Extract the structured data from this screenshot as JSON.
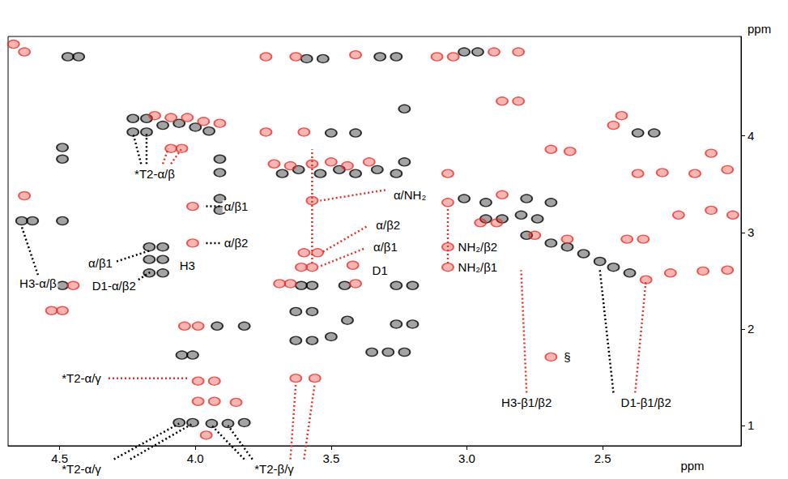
{
  "chart_data": {
    "type": "scatter",
    "marker": "ellipse",
    "xlabel": "ppm",
    "ylabel": "ppm",
    "xlim": [
      4.69,
      1.99
    ],
    "xticks": [
      4.5,
      {
        "value": 4,
        "label": "4.0"
      },
      3.5,
      {
        "value": 3,
        "label": "3.0"
      },
      2.5
    ],
    "ylim": [
      5.03,
      0.79
    ],
    "yticks": [
      1,
      2,
      3,
      4
    ],
    "grid": false,
    "series": [
      {
        "color": "#000000",
        "values": [
          [
            4.06,
            1.03
          ],
          [
            4.01,
            1.03
          ],
          [
            3.94,
            1.02
          ],
          [
            3.88,
            1.02
          ],
          [
            3.82,
            1.03
          ],
          [
            4.05,
            1.73
          ],
          [
            4.01,
            1.73
          ],
          [
            3.92,
            2.03
          ],
          [
            3.82,
            2.03
          ],
          [
            4.49,
            2.45
          ],
          [
            4.64,
            3.12
          ],
          [
            4.6,
            3.12
          ],
          [
            4.49,
            3.12
          ],
          [
            4.17,
            2.58
          ],
          [
            4.12,
            2.58
          ],
          [
            4.17,
            2.72
          ],
          [
            4.12,
            2.72
          ],
          [
            4.17,
            2.85
          ],
          [
            4.12,
            2.85
          ],
          [
            3.91,
            3.23
          ],
          [
            3.91,
            3.35
          ],
          [
            4.49,
            3.76
          ],
          [
            4.49,
            3.88
          ],
          [
            3.91,
            3.62
          ],
          [
            3.91,
            3.76
          ],
          [
            4.23,
            4.04
          ],
          [
            4.23,
            4.18
          ],
          [
            4.18,
            4.04
          ],
          [
            4.18,
            4.18
          ],
          [
            4.12,
            4.11
          ],
          [
            4.06,
            4.13
          ],
          [
            4.0,
            4.09
          ],
          [
            3.95,
            4.05
          ],
          [
            4.47,
            4.82
          ],
          [
            4.43,
            4.82
          ],
          [
            3.63,
            1.88
          ],
          [
            3.57,
            1.88
          ],
          [
            3.5,
            1.92
          ],
          [
            3.63,
            2.18
          ],
          [
            3.57,
            2.18
          ],
          [
            3.44,
            2.09
          ],
          [
            3.35,
            1.76
          ],
          [
            3.29,
            1.76
          ],
          [
            3.23,
            1.76
          ],
          [
            3.26,
            2.05
          ],
          [
            3.2,
            2.05
          ],
          [
            3.61,
            2.45
          ],
          [
            3.57,
            2.45
          ],
          [
            3.45,
            2.45
          ],
          [
            3.26,
            2.45
          ],
          [
            3.2,
            2.45
          ],
          [
            3.68,
            3.61
          ],
          [
            3.62,
            3.65
          ],
          [
            3.54,
            3.61
          ],
          [
            3.47,
            3.65
          ],
          [
            3.41,
            3.61
          ],
          [
            3.33,
            3.65
          ],
          [
            3.26,
            3.61
          ],
          [
            3.23,
            3.73
          ],
          [
            3.5,
            4.03
          ],
          [
            3.41,
            4.03
          ],
          [
            3.23,
            4.28
          ],
          [
            3.59,
            4.8
          ],
          [
            3.53,
            4.8
          ],
          [
            3.32,
            4.82
          ],
          [
            3.26,
            4.82
          ],
          [
            2.93,
            3.14
          ],
          [
            2.87,
            3.14
          ],
          [
            2.8,
            3.18
          ],
          [
            2.74,
            3.14
          ],
          [
            2.93,
            3.31
          ],
          [
            2.78,
            3.35
          ],
          [
            2.69,
            3.31
          ],
          [
            2.78,
            2.97
          ],
          [
            2.69,
            2.89
          ],
          [
            2.63,
            2.85
          ],
          [
            2.57,
            2.78
          ],
          [
            2.51,
            2.7
          ],
          [
            2.46,
            2.64
          ],
          [
            2.4,
            2.58
          ],
          [
            3.01,
            3.35
          ],
          [
            2.37,
            4.03
          ],
          [
            2.31,
            4.03
          ],
          [
            3.01,
            4.87
          ],
          [
            2.96,
            4.87
          ]
        ]
      },
      {
        "color": "#e8322b",
        "values": [
          [
            3.96,
            0.9
          ],
          [
            3.99,
            1.25
          ],
          [
            3.93,
            1.25
          ],
          [
            3.85,
            1.24
          ],
          [
            3.99,
            1.46
          ],
          [
            3.93,
            1.46
          ],
          [
            3.63,
            1.49
          ],
          [
            3.56,
            1.49
          ],
          [
            4.04,
            2.03
          ],
          [
            3.99,
            2.03
          ],
          [
            4.53,
            2.19
          ],
          [
            4.49,
            2.19
          ],
          [
            4.45,
            2.45
          ],
          [
            4.63,
            3.38
          ],
          [
            4.01,
            2.89
          ],
          [
            4.01,
            3.27
          ],
          [
            4.09,
            3.87
          ],
          [
            4.05,
            3.87
          ],
          [
            4.15,
            4.21
          ],
          [
            4.09,
            4.19
          ],
          [
            4.03,
            4.19
          ],
          [
            3.97,
            4.15
          ],
          [
            3.91,
            4.13
          ],
          [
            4.63,
            4.87
          ],
          [
            4.67,
            4.95
          ],
          [
            3.69,
            2.47
          ],
          [
            3.65,
            2.47
          ],
          [
            3.61,
            2.64
          ],
          [
            3.57,
            2.64
          ],
          [
            3.6,
            2.79
          ],
          [
            3.55,
            2.79
          ],
          [
            3.42,
            2.66
          ],
          [
            3.41,
            2.47
          ],
          [
            3.57,
            3.33
          ],
          [
            3.71,
            3.71
          ],
          [
            3.65,
            3.69
          ],
          [
            3.57,
            3.71
          ],
          [
            3.5,
            3.73
          ],
          [
            3.44,
            3.69
          ],
          [
            3.36,
            3.73
          ],
          [
            3.74,
            4.04
          ],
          [
            3.6,
            4.04
          ],
          [
            3.74,
            4.82
          ],
          [
            3.63,
            4.82
          ],
          [
            3.41,
            4.84
          ],
          [
            3.07,
            2.64
          ],
          [
            3.07,
            2.85
          ],
          [
            3.07,
            3.31
          ],
          [
            3.07,
            3.61
          ],
          [
            2.95,
            3.1
          ],
          [
            2.89,
            3.1
          ],
          [
            2.87,
            3.39
          ],
          [
            2.75,
            2.97
          ],
          [
            2.63,
            2.93
          ],
          [
            2.69,
            3.86
          ],
          [
            2.62,
            3.84
          ],
          [
            2.87,
            4.36
          ],
          [
            2.81,
            4.36
          ],
          [
            3.11,
            4.82
          ],
          [
            3.05,
            4.82
          ],
          [
            2.9,
            4.87
          ],
          [
            2.81,
            4.87
          ],
          [
            2.69,
            1.71
          ],
          [
            2.34,
            2.51
          ],
          [
            2.25,
            2.58
          ],
          [
            2.13,
            2.6
          ],
          [
            2.04,
            2.61
          ],
          [
            2.41,
            2.93
          ],
          [
            2.35,
            2.93
          ],
          [
            2.22,
            3.18
          ],
          [
            2.1,
            3.23
          ],
          [
            2.02,
            3.18
          ],
          [
            2.37,
            3.61
          ],
          [
            2.28,
            3.62
          ],
          [
            2.16,
            3.61
          ],
          [
            2.04,
            3.65
          ],
          [
            2.1,
            3.82
          ],
          [
            2.46,
            4.11
          ],
          [
            2.43,
            4.21
          ]
        ]
      }
    ],
    "annotations": [
      {
        "text": "*T2-α/γ",
        "x": 4.42,
        "y": 0.55,
        "leaders": [
          {
            "color": "#000000",
            "from": [
              4.3,
              0.65
            ],
            "to": [
              4.06,
              1.02
            ]
          },
          {
            "color": "#000000",
            "from": [
              4.24,
              0.65
            ],
            "to": [
              4.01,
              1.02
            ]
          }
        ]
      },
      {
        "text": "*T2-β/γ",
        "x": 3.71,
        "y": 0.55,
        "leaders": [
          {
            "color": "#000000",
            "from": [
              3.82,
              0.65
            ],
            "to": [
              3.94,
              1.0
            ]
          },
          {
            "color": "#000000",
            "from": [
              3.79,
              0.65
            ],
            "to": [
              3.88,
              1.0
            ]
          },
          {
            "color": "#e8322b",
            "from": [
              3.65,
              0.65
            ],
            "to": [
              3.63,
              1.44
            ]
          },
          {
            "color": "#e8322b",
            "from": [
              3.6,
              0.65
            ],
            "to": [
              3.56,
              1.44
            ]
          }
        ]
      },
      {
        "text": "*T2-α/γ",
        "x": 4.42,
        "y": 1.49,
        "leaders": [
          {
            "color": "#e8322b",
            "from": [
              4.32,
              1.49
            ],
            "to": [
              4.03,
              1.49
            ]
          }
        ]
      },
      {
        "text": "H3-α/β",
        "x": 4.58,
        "y": 2.47,
        "leaders": [
          {
            "color": "#000000",
            "from": [
              4.58,
              2.56
            ],
            "to": [
              4.64,
              3.06
            ]
          }
        ]
      },
      {
        "text": "D1-α/β2",
        "x": 4.3,
        "y": 2.45,
        "leaders": [
          {
            "color": "#000000",
            "from": [
              4.21,
              2.51
            ],
            "to": [
              4.16,
              2.6
            ]
          }
        ]
      },
      {
        "text": "α/β1",
        "x": 4.35,
        "y": 2.68,
        "leaders": [
          {
            "color": "#000000",
            "from": [
              4.29,
              2.7
            ],
            "to": [
              4.17,
              2.81
            ]
          }
        ]
      },
      {
        "text": "H3",
        "x": 4.03,
        "y": 2.66,
        "leaders": []
      },
      {
        "text": "α/β2",
        "x": 3.85,
        "y": 2.89,
        "leaders": [
          {
            "color": "#000000",
            "from": [
              3.91,
              2.89
            ],
            "to": [
              3.97,
              2.89
            ]
          }
        ]
      },
      {
        "text": "α/β1",
        "x": 3.85,
        "y": 3.27,
        "leaders": [
          {
            "color": "#000000",
            "from": [
              3.91,
              3.27
            ],
            "to": [
              3.97,
              3.27
            ]
          }
        ]
      },
      {
        "text": "*T2-α/β",
        "x": 4.15,
        "y": 3.61,
        "leaders": [
          {
            "color": "#000000",
            "from": [
              4.2,
              3.71
            ],
            "to": [
              4.23,
              4.03
            ]
          },
          {
            "color": "#000000",
            "from": [
              4.18,
              3.71
            ],
            "to": [
              4.18,
              4.03
            ]
          },
          {
            "color": "#e8322b",
            "from": [
              4.12,
              3.71
            ],
            "to": [
              4.1,
              3.87
            ]
          },
          {
            "color": "#e8322b",
            "from": [
              4.09,
              3.71
            ],
            "to": [
              4.05,
              3.87
            ]
          }
        ]
      },
      {
        "text": "D1",
        "x": 3.32,
        "y": 2.61,
        "leaders": []
      },
      {
        "text": "α/β1",
        "x": 3.3,
        "y": 2.85,
        "leaders": [
          {
            "color": "#e8322b",
            "from": [
              3.38,
              2.83
            ],
            "to": [
              3.54,
              2.65
            ]
          }
        ]
      },
      {
        "text": "α/β2",
        "x": 3.29,
        "y": 3.08,
        "leaders": [
          {
            "color": "#e8322b",
            "from": [
              3.37,
              3.06
            ],
            "to": [
              3.53,
              2.8
            ]
          }
        ]
      },
      {
        "text": "α/NH₂",
        "x": 3.21,
        "y": 3.39,
        "leaders": [
          {
            "color": "#e8322b",
            "from": [
              3.3,
              3.44
            ],
            "to": [
              3.54,
              3.33
            ]
          },
          {
            "color": "#e8322b",
            "from": [
              3.57,
              2.68
            ],
            "to": [
              3.57,
              3.86
            ]
          }
        ]
      },
      {
        "text": "NH₂/β1",
        "x": 2.96,
        "y": 2.64,
        "leaders": [
          {
            "color": "#e8322b",
            "from": [
              3.07,
              2.68
            ],
            "to": [
              3.07,
              3.27
            ]
          }
        ]
      },
      {
        "text": "NH₂/β2",
        "x": 2.96,
        "y": 2.85,
        "leaders": []
      },
      {
        "text": "H3-β1/β2",
        "x": 2.78,
        "y": 1.24,
        "leaders": [
          {
            "color": "#e8322b",
            "from": [
              2.78,
              1.34
            ],
            "to": [
              2.8,
              2.61
            ]
          }
        ]
      },
      {
        "text": "D1-β1/β2",
        "x": 2.34,
        "y": 1.24,
        "leaders": [
          {
            "color": "#000000",
            "from": [
              2.46,
              1.34
            ],
            "to": [
              2.51,
              2.61
            ]
          },
          {
            "color": "#e8322b",
            "from": [
              2.38,
              1.34
            ],
            "to": [
              2.34,
              2.51
            ]
          }
        ]
      },
      {
        "text": "§",
        "x": 2.63,
        "y": 1.71,
        "leaders": []
      }
    ]
  }
}
